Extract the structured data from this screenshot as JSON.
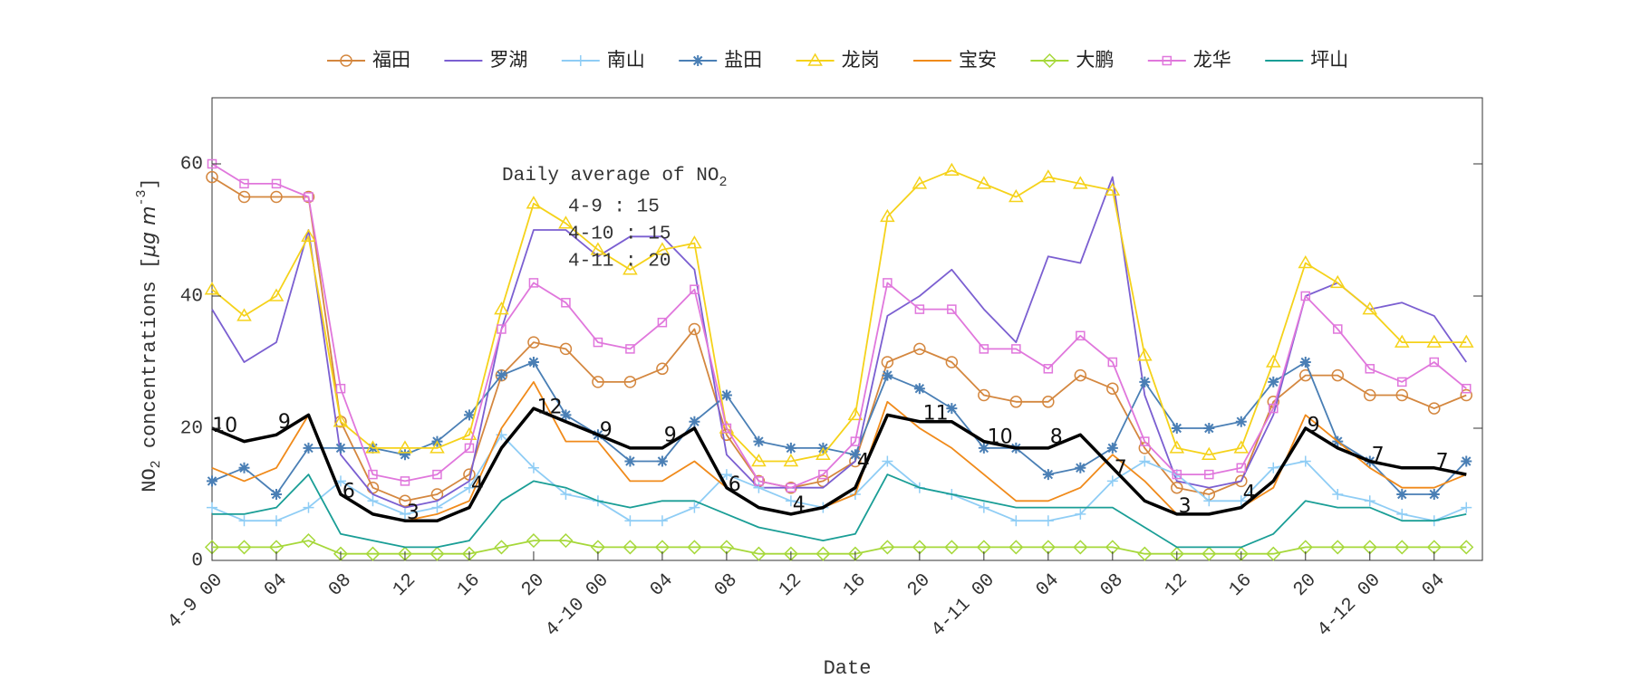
{
  "chart_data": {
    "type": "line",
    "xlabel": "Date",
    "ylabel": [
      "NO",
      "2",
      " concentrations [",
      "μg m",
      "-3",
      "]"
    ],
    "x": [
      0,
      2,
      4,
      6,
      8,
      10,
      12,
      14,
      16,
      18,
      20,
      22,
      24,
      26,
      28,
      30,
      32,
      34,
      36,
      38,
      40,
      42,
      44,
      46,
      48,
      50,
      52,
      54,
      56,
      58,
      60,
      62,
      64,
      66,
      68,
      70,
      72,
      74,
      76,
      78
    ],
    "xlim": [
      0,
      79
    ],
    "ylim": [
      0,
      70
    ],
    "xticks": [
      {
        "value": 0,
        "label": "4-9 00"
      },
      {
        "value": 4,
        "label": "04"
      },
      {
        "value": 8,
        "label": "08"
      },
      {
        "value": 12,
        "label": "12"
      },
      {
        "value": 16,
        "label": "16"
      },
      {
        "value": 20,
        "label": "20"
      },
      {
        "value": 24,
        "label": "4-10 00"
      },
      {
        "value": 28,
        "label": "04"
      },
      {
        "value": 32,
        "label": "08"
      },
      {
        "value": 36,
        "label": "12"
      },
      {
        "value": 40,
        "label": "16"
      },
      {
        "value": 44,
        "label": "20"
      },
      {
        "value": 48,
        "label": "4-11 00"
      },
      {
        "value": 52,
        "label": "04"
      },
      {
        "value": 56,
        "label": "08"
      },
      {
        "value": 60,
        "label": "12"
      },
      {
        "value": 64,
        "label": "16"
      },
      {
        "value": 68,
        "label": "20"
      },
      {
        "value": 72,
        "label": "4-12 00"
      },
      {
        "value": 76,
        "label": "04"
      }
    ],
    "yticks": [
      0,
      20,
      40,
      60
    ],
    "legend": "top",
    "series": [
      {
        "name": "福田",
        "color": "#d4873f",
        "marker": "circle",
        "values": [
          58,
          55,
          55,
          55,
          21,
          11,
          9,
          10,
          13,
          28,
          33,
          32,
          27,
          27,
          29,
          35,
          19,
          12,
          11,
          12,
          15,
          30,
          32,
          30,
          25,
          24,
          24,
          28,
          26,
          17,
          11,
          10,
          12,
          24,
          28,
          28,
          25,
          25,
          23,
          25
        ]
      },
      {
        "name": "罗湖",
        "color": "#7b5fd1",
        "marker": "none",
        "values": [
          38,
          30,
          33,
          50,
          16,
          10,
          8,
          9,
          12,
          35,
          50,
          50,
          46,
          49,
          49,
          44,
          16,
          11,
          11,
          11,
          15,
          37,
          40,
          44,
          38,
          33,
          46,
          45,
          58,
          25,
          12,
          11,
          12,
          22,
          40,
          42,
          38,
          39,
          37,
          30
        ]
      },
      {
        "name": "南山",
        "color": "#8fcdf5",
        "marker": "plus",
        "values": [
          8,
          6,
          6,
          8,
          12,
          9,
          7,
          8,
          11,
          19,
          14,
          10,
          9,
          6,
          6,
          8,
          13,
          11,
          9,
          8,
          10,
          15,
          11,
          10,
          8,
          6,
          6,
          7,
          12,
          15,
          13,
          9,
          9,
          14,
          15,
          10,
          9,
          7,
          6,
          8
        ]
      },
      {
        "name": "盐田",
        "color": "#4a7fb5",
        "marker": "asterisk",
        "values": [
          12,
          14,
          10,
          17,
          17,
          17,
          16,
          18,
          22,
          28,
          30,
          22,
          19,
          15,
          15,
          21,
          25,
          18,
          17,
          17,
          16,
          28,
          26,
          23,
          17,
          17,
          13,
          14,
          17,
          27,
          20,
          20,
          21,
          27,
          30,
          18,
          15,
          10,
          10,
          15
        ]
      },
      {
        "name": "龙岗",
        "color": "#f5d21a",
        "marker": "triangle",
        "values": [
          41,
          37,
          40,
          49,
          21,
          17,
          17,
          17,
          19,
          38,
          54,
          51,
          47,
          44,
          47,
          48,
          20,
          15,
          15,
          16,
          22,
          52,
          57,
          59,
          57,
          55,
          58,
          57,
          56,
          31,
          17,
          16,
          17,
          30,
          45,
          42,
          38,
          33,
          33,
          33
        ]
      },
      {
        "name": "宝安",
        "color": "#f08a1a",
        "marker": "none",
        "values": [
          14,
          12,
          14,
          22,
          10,
          7,
          6,
          7,
          9,
          20,
          27,
          18,
          18,
          12,
          12,
          15,
          11,
          8,
          7,
          8,
          10,
          24,
          20,
          17,
          13,
          9,
          9,
          11,
          16,
          12,
          7,
          7,
          8,
          11,
          22,
          18,
          14,
          11,
          11,
          13
        ]
      },
      {
        "name": "大鹏",
        "color": "#a6d83a",
        "marker": "diamond",
        "values": [
          2,
          2,
          2,
          3,
          1,
          1,
          1,
          1,
          1,
          2,
          3,
          3,
          2,
          2,
          2,
          2,
          2,
          1,
          1,
          1,
          1,
          2,
          2,
          2,
          2,
          2,
          2,
          2,
          2,
          1,
          1,
          1,
          1,
          1,
          2,
          2,
          2,
          2,
          2,
          2
        ]
      },
      {
        "name": "龙华",
        "color": "#e077dc",
        "marker": "square",
        "values": [
          60,
          57,
          57,
          55,
          26,
          13,
          12,
          13,
          17,
          35,
          42,
          39,
          33,
          32,
          36,
          41,
          20,
          12,
          11,
          13,
          18,
          42,
          38,
          38,
          32,
          32,
          29,
          34,
          30,
          18,
          13,
          13,
          14,
          23,
          40,
          35,
          29,
          27,
          30,
          26
        ]
      },
      {
        "name": "坪山",
        "color": "#1a9e96",
        "marker": "none",
        "values": [
          7,
          7,
          8,
          13,
          4,
          3,
          2,
          2,
          3,
          9,
          12,
          11,
          9,
          8,
          9,
          9,
          7,
          5,
          4,
          3,
          4,
          13,
          11,
          10,
          9,
          8,
          8,
          8,
          8,
          5,
          2,
          2,
          2,
          4,
          9,
          8,
          8,
          6,
          6,
          7
        ]
      }
    ],
    "average": {
      "color": "#000000",
      "values": [
        20,
        18,
        19,
        22,
        10,
        7,
        6,
        6,
        8,
        17,
        23,
        21,
        19,
        17,
        17,
        20,
        11,
        8,
        7,
        8,
        11,
        22,
        21,
        21,
        18,
        17,
        17,
        19,
        14,
        9,
        7,
        7,
        8,
        12,
        20,
        17,
        15,
        14,
        14,
        13
      ]
    },
    "annotations": {
      "x": [
        0.8,
        4.5,
        8.5,
        12.5,
        16.5,
        21,
        24.5,
        28.5,
        32.5,
        36.5,
        40.5,
        45,
        49,
        52.5,
        56.5,
        60.5,
        64.5,
        68.5,
        72.5,
        76.5
      ],
      "labels": [
        "10",
        "9",
        "6",
        "3",
        "4",
        "12",
        "9",
        "9",
        "6",
        "4",
        "4",
        "11",
        "10",
        "8",
        "7",
        "3",
        "4",
        "9",
        "7",
        "7"
      ]
    },
    "text_box": {
      "title": [
        "Daily average of NO",
        "2"
      ],
      "lines": [
        "4-9 : 15",
        "4-10 : 15",
        "4-11 : 20"
      ]
    }
  }
}
